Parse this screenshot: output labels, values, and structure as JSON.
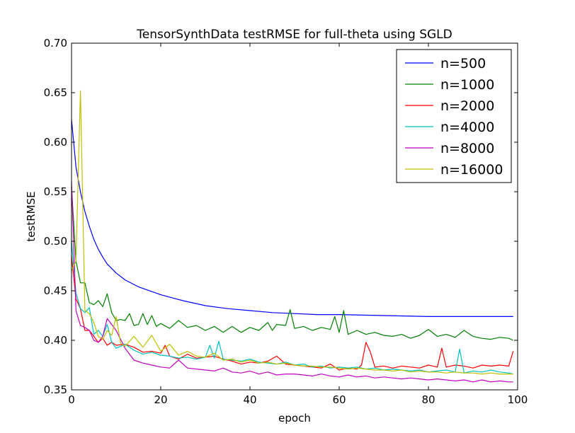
{
  "chart_data": {
    "type": "line",
    "title": "TensorSynthData testRMSE for full-theta using SGLD",
    "xlabel": "epoch",
    "ylabel": "testRMSE",
    "xlim": [
      0,
      100
    ],
    "ylim": [
      0.35,
      0.7
    ],
    "xticks": [
      0,
      20,
      40,
      60,
      80,
      100
    ],
    "yticks": [
      0.35,
      0.4,
      0.45,
      0.5,
      0.55,
      0.6,
      0.65,
      0.7
    ],
    "xtick_labels": [
      "0",
      "20",
      "40",
      "60",
      "80",
      "100"
    ],
    "ytick_labels": [
      "0.35",
      "0.40",
      "0.45",
      "0.50",
      "0.55",
      "0.60",
      "0.65",
      "0.70"
    ],
    "grid": false,
    "legend_position": "top-right",
    "series": [
      {
        "name": "n=500",
        "color": "#0000ff",
        "x": [
          0,
          1,
          2,
          3,
          4,
          5,
          6,
          7,
          8,
          10,
          12,
          15,
          20,
          25,
          30,
          35,
          40,
          45,
          50,
          55,
          60,
          70,
          80,
          90,
          99
        ],
        "values": [
          0.623,
          0.575,
          0.55,
          0.53,
          0.515,
          0.502,
          0.492,
          0.484,
          0.477,
          0.468,
          0.461,
          0.454,
          0.446,
          0.44,
          0.435,
          0.432,
          0.43,
          0.428,
          0.427,
          0.426,
          0.426,
          0.425,
          0.424,
          0.424,
          0.424
        ]
      },
      {
        "name": "n=1000",
        "color": "#008000",
        "x": [
          0,
          1,
          2,
          3,
          4,
          5,
          6,
          7,
          8,
          9,
          10,
          11,
          12,
          13,
          14,
          15,
          16,
          17,
          18,
          19,
          20,
          22,
          24,
          26,
          28,
          30,
          32,
          34,
          36,
          38,
          40,
          42,
          44,
          45,
          46,
          48,
          49,
          50,
          52,
          54,
          56,
          58,
          59,
          60,
          61,
          62,
          64,
          66,
          68,
          70,
          72,
          74,
          76,
          78,
          80,
          82,
          84,
          86,
          88,
          90,
          92,
          94,
          96,
          98,
          99
        ],
        "values": [
          0.555,
          0.48,
          0.458,
          0.458,
          0.438,
          0.436,
          0.44,
          0.434,
          0.447,
          0.428,
          0.42,
          0.421,
          0.42,
          0.427,
          0.415,
          0.416,
          0.427,
          0.416,
          0.425,
          0.414,
          0.417,
          0.412,
          0.42,
          0.413,
          0.415,
          0.41,
          0.414,
          0.408,
          0.414,
          0.408,
          0.413,
          0.41,
          0.418,
          0.41,
          0.416,
          0.415,
          0.431,
          0.412,
          0.414,
          0.41,
          0.413,
          0.411,
          0.424,
          0.408,
          0.43,
          0.406,
          0.41,
          0.406,
          0.408,
          0.405,
          0.404,
          0.406,
          0.402,
          0.405,
          0.411,
          0.404,
          0.406,
          0.403,
          0.41,
          0.404,
          0.402,
          0.401,
          0.403,
          0.402,
          0.4
        ]
      },
      {
        "name": "n=2000",
        "color": "#ff0000",
        "x": [
          0,
          1,
          2,
          3,
          4,
          5,
          6,
          7,
          8,
          9,
          10,
          12,
          14,
          16,
          18,
          20,
          21,
          22,
          24,
          26,
          28,
          30,
          32,
          34,
          36,
          38,
          40,
          42,
          44,
          46,
          48,
          50,
          52,
          54,
          56,
          58,
          60,
          62,
          64,
          65,
          66,
          67,
          68,
          70,
          72,
          74,
          76,
          78,
          80,
          82,
          83,
          84,
          86,
          88,
          90,
          92,
          94,
          96,
          98,
          99
        ],
        "values": [
          0.485,
          0.442,
          0.432,
          0.41,
          0.41,
          0.404,
          0.398,
          0.402,
          0.395,
          0.398,
          0.395,
          0.396,
          0.393,
          0.388,
          0.389,
          0.387,
          0.395,
          0.384,
          0.381,
          0.386,
          0.382,
          0.383,
          0.384,
          0.381,
          0.379,
          0.376,
          0.378,
          0.377,
          0.379,
          0.384,
          0.376,
          0.375,
          0.374,
          0.373,
          0.372,
          0.376,
          0.37,
          0.372,
          0.371,
          0.375,
          0.398,
          0.388,
          0.373,
          0.374,
          0.372,
          0.374,
          0.373,
          0.372,
          0.375,
          0.373,
          0.392,
          0.373,
          0.375,
          0.374,
          0.372,
          0.375,
          0.374,
          0.375,
          0.374,
          0.389
        ]
      },
      {
        "name": "n=4000",
        "color": "#00bfbf",
        "x": [
          0,
          1,
          2,
          3,
          4,
          5,
          6,
          7,
          8,
          9,
          10,
          12,
          14,
          16,
          18,
          20,
          22,
          24,
          26,
          28,
          30,
          31,
          32,
          33,
          34,
          36,
          38,
          40,
          42,
          44,
          46,
          48,
          50,
          52,
          54,
          56,
          58,
          60,
          62,
          64,
          66,
          68,
          70,
          72,
          74,
          76,
          78,
          80,
          82,
          84,
          86,
          87,
          88,
          90,
          92,
          94,
          96,
          98,
          99
        ],
        "values": [
          0.5,
          0.448,
          0.432,
          0.428,
          0.433,
          0.406,
          0.41,
          0.404,
          0.416,
          0.398,
          0.392,
          0.396,
          0.39,
          0.386,
          0.388,
          0.385,
          0.384,
          0.382,
          0.383,
          0.381,
          0.383,
          0.395,
          0.382,
          0.399,
          0.381,
          0.38,
          0.379,
          0.381,
          0.378,
          0.377,
          0.376,
          0.378,
          0.375,
          0.376,
          0.373,
          0.374,
          0.372,
          0.373,
          0.372,
          0.373,
          0.371,
          0.372,
          0.37,
          0.371,
          0.37,
          0.369,
          0.37,
          0.368,
          0.369,
          0.37,
          0.368,
          0.391,
          0.367,
          0.369,
          0.368,
          0.37,
          0.368,
          0.367,
          0.366
        ]
      },
      {
        "name": "n=8000",
        "color": "#bf00bf",
        "x": [
          0,
          1,
          2,
          3,
          4,
          5,
          6,
          7,
          8,
          9,
          10,
          12,
          14,
          16,
          18,
          20,
          22,
          24,
          26,
          28,
          30,
          32,
          34,
          36,
          38,
          40,
          42,
          44,
          46,
          48,
          50,
          52,
          54,
          56,
          58,
          60,
          62,
          64,
          66,
          68,
          70,
          72,
          74,
          76,
          78,
          80,
          82,
          84,
          86,
          88,
          90,
          92,
          94,
          96,
          98,
          99
        ],
        "values": [
          0.56,
          0.43,
          0.415,
          0.413,
          0.41,
          0.4,
          0.398,
          0.404,
          0.422,
          0.416,
          0.41,
          0.392,
          0.38,
          0.377,
          0.375,
          0.373,
          0.372,
          0.38,
          0.372,
          0.371,
          0.37,
          0.369,
          0.372,
          0.368,
          0.367,
          0.369,
          0.366,
          0.368,
          0.365,
          0.366,
          0.366,
          0.365,
          0.364,
          0.366,
          0.364,
          0.363,
          0.365,
          0.363,
          0.364,
          0.362,
          0.363,
          0.362,
          0.361,
          0.362,
          0.361,
          0.36,
          0.361,
          0.36,
          0.359,
          0.36,
          0.358,
          0.36,
          0.358,
          0.359,
          0.358,
          0.358
        ]
      },
      {
        "name": "n=16000",
        "color": "#bfbf00",
        "x": [
          0,
          1,
          2,
          3,
          4,
          5,
          6,
          7,
          8,
          9,
          10,
          11,
          12,
          14,
          16,
          18,
          20,
          22,
          24,
          26,
          28,
          30,
          32,
          34,
          36,
          38,
          40,
          42,
          44,
          46,
          48,
          50,
          52,
          54,
          56,
          58,
          60,
          62,
          64,
          66,
          68,
          70,
          72,
          74,
          76,
          78,
          80,
          82,
          84,
          86,
          88,
          90,
          92,
          94,
          96,
          98,
          99
        ],
        "values": [
          0.47,
          0.48,
          0.652,
          0.43,
          0.427,
          0.418,
          0.404,
          0.401,
          0.41,
          0.405,
          0.424,
          0.397,
          0.394,
          0.404,
          0.393,
          0.405,
          0.389,
          0.396,
          0.385,
          0.389,
          0.384,
          0.383,
          0.387,
          0.38,
          0.381,
          0.378,
          0.38,
          0.377,
          0.378,
          0.376,
          0.377,
          0.375,
          0.374,
          0.374,
          0.373,
          0.373,
          0.372,
          0.371,
          0.372,
          0.371,
          0.37,
          0.37,
          0.369,
          0.37,
          0.368,
          0.369,
          0.368,
          0.368,
          0.367,
          0.368,
          0.367,
          0.367,
          0.366,
          0.367,
          0.366,
          0.366,
          0.366
        ]
      }
    ]
  }
}
